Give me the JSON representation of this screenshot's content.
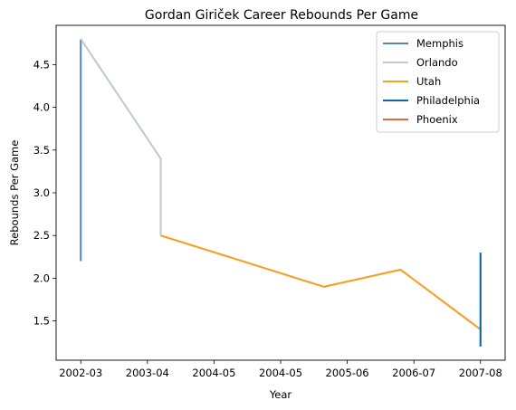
{
  "chart_data": {
    "type": "line",
    "title": "Gordan Giriček Career Rebounds Per Game",
    "xlabel": "Year",
    "ylabel": "Rebounds Per Game",
    "x_tick_labels": [
      "2002-03",
      "2003-04",
      "2004-05",
      "2004-05",
      "2005-06",
      "2006-07",
      "2007-08"
    ],
    "x_tick_positions": [
      0,
      1,
      2,
      3,
      4,
      5,
      6
    ],
    "xlim": [
      -0.37,
      6.37
    ],
    "ylim": [
      1.04,
      4.96
    ],
    "y_ticks": [
      1.5,
      2.0,
      2.5,
      3.0,
      3.5,
      4.0,
      4.5
    ],
    "y_tick_labels": [
      "1.5",
      "2.0",
      "2.5",
      "3.0",
      "3.5",
      "4.0",
      "4.5"
    ],
    "grid": false,
    "legend_position": "top-right",
    "series": [
      {
        "name": "Memphis",
        "color": "#5b87b8",
        "points": [
          {
            "x": 0.0,
            "y": 2.2
          },
          {
            "x": 0.0,
            "y": 4.8
          }
        ]
      },
      {
        "name": "Orlando",
        "color": "#bfcad3",
        "points": [
          {
            "x": 0.0,
            "y": 4.8
          },
          {
            "x": 1.2,
            "y": 3.4
          },
          {
            "x": 1.2,
            "y": 2.5
          }
        ]
      },
      {
        "name": "Utah",
        "color": "#f4a022",
        "points": [
          {
            "x": 1.2,
            "y": 2.5
          },
          {
            "x": 3.65,
            "y": 1.9
          },
          {
            "x": 4.8,
            "y": 2.1
          },
          {
            "x": 6.0,
            "y": 1.4
          }
        ]
      },
      {
        "name": "Philadelphia",
        "color": "#0a68a6",
        "points": [
          {
            "x": 6.0,
            "y": 1.2
          },
          {
            "x": 6.0,
            "y": 2.3
          }
        ]
      },
      {
        "name": "Phoenix",
        "color": "#e2693a",
        "points": [
          {
            "x": 6.0,
            "y": 1.4
          },
          {
            "x": 6.0,
            "y": 1.4
          }
        ]
      }
    ]
  }
}
